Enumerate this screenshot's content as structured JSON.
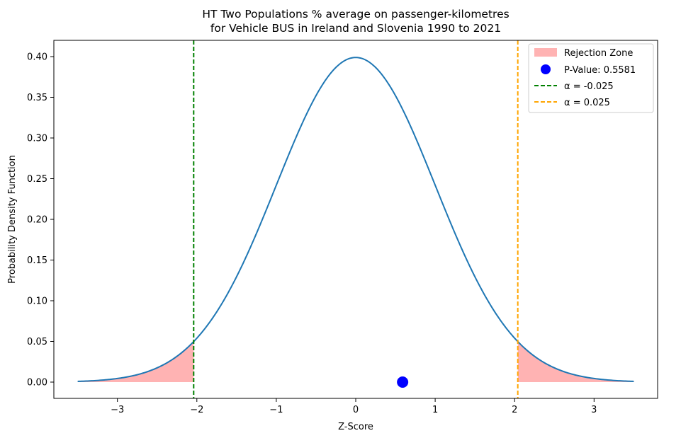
{
  "chart_data": {
    "type": "line",
    "title_line1": "HT Two Populations % average on passenger-kilometres",
    "title_line2": "for Vehicle BUS in Ireland and Slovenia 1990 to 2021",
    "xlabel": "Z-Score",
    "ylabel": "Probability Density Function",
    "xlim": [
      -3.8,
      3.8
    ],
    "ylim": [
      -0.02,
      0.42
    ],
    "xticks": [
      -3,
      -2,
      -1,
      0,
      1,
      2,
      3
    ],
    "xtick_labels": [
      "−3",
      "−2",
      "−1",
      "0",
      "1",
      "2",
      "3"
    ],
    "yticks": [
      0.0,
      0.05,
      0.1,
      0.15,
      0.2,
      0.25,
      0.3,
      0.35,
      0.4
    ],
    "ytick_labels": [
      "0.00",
      "0.05",
      "0.10",
      "0.15",
      "0.20",
      "0.25",
      "0.30",
      "0.35",
      "0.40"
    ],
    "curve": {
      "distribution": "standard normal pdf",
      "x_range": [
        -3.5,
        3.5
      ],
      "color": "#1f77b4"
    },
    "rejection_zone": {
      "left": [
        -3.5,
        -2.04
      ],
      "right": [
        2.04,
        3.5
      ],
      "color": "#ff9999"
    },
    "critical_values": [
      {
        "x": -2.04,
        "color": "#008000",
        "label": "α = -0.025"
      },
      {
        "x": 2.04,
        "color": "#ffa500",
        "label": "α = 0.025"
      }
    ],
    "point": {
      "x": 0.59,
      "y": 0.0,
      "color": "#0000ff",
      "label": "P-Value: 0.5581"
    },
    "grid": false,
    "legend": {
      "placement": "top-right",
      "entries": [
        "Rejection Zone",
        "P-Value: 0.5581",
        "α = -0.025",
        "α = 0.025"
      ]
    }
  }
}
